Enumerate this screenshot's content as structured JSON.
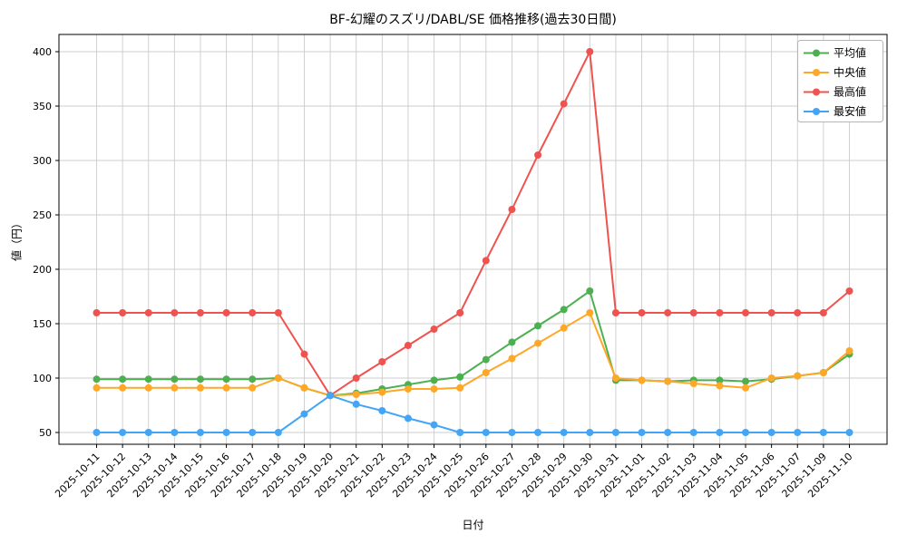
{
  "chart_data": {
    "type": "line",
    "title": "BF-幻耀のスズリ/DABL/SE 価格推移(過去30日間)",
    "xlabel": "日付",
    "ylabel": "値（円）",
    "ylim": [
      30,
      420
    ],
    "yticks": [
      50,
      100,
      150,
      200,
      250,
      300,
      350,
      400
    ],
    "grid": true,
    "legend_position": "upper right",
    "categories": [
      "2025-10-11",
      "2025-10-12",
      "2025-10-13",
      "2025-10-14",
      "2025-10-15",
      "2025-10-16",
      "2025-10-17",
      "2025-10-18",
      "2025-10-19",
      "2025-10-20",
      "2025-10-21",
      "2025-10-22",
      "2025-10-23",
      "2025-10-24",
      "2025-10-25",
      "2025-10-26",
      "2025-10-27",
      "2025-10-28",
      "2025-10-29",
      "2025-10-30",
      "2025-10-31",
      "2025-11-01",
      "2025-11-02",
      "2025-11-03",
      "2025-11-04",
      "2025-11-05",
      "2025-11-06",
      "2025-11-07",
      "2025-11-09",
      "2025-11-10"
    ],
    "series": [
      {
        "name": "平均値",
        "id": "average",
        "color": "#4caf50",
        "values": [
          99,
          99,
          99,
          99,
          99,
          99,
          99,
          100,
          91,
          84,
          86,
          90,
          94,
          98,
          101,
          117,
          133,
          148,
          163,
          180,
          98,
          98,
          97,
          98,
          98,
          97,
          99,
          102,
          105,
          122
        ]
      },
      {
        "name": "中央値",
        "id": "median",
        "color": "#ffa726",
        "values": [
          91,
          91,
          91,
          91,
          91,
          91,
          91,
          100,
          91,
          84,
          85,
          87,
          90,
          90,
          91,
          105,
          118,
          132,
          146,
          160,
          100,
          98,
          97,
          95,
          93,
          91,
          100,
          102,
          105,
          125
        ]
      },
      {
        "name": "最高値",
        "id": "max",
        "color": "#ef5350",
        "values": [
          160,
          160,
          160,
          160,
          160,
          160,
          160,
          160,
          122,
          84,
          100,
          115,
          130,
          145,
          160,
          208,
          255,
          305,
          352,
          400,
          160,
          160,
          160,
          160,
          160,
          160,
          160,
          160,
          160,
          180
        ]
      },
      {
        "name": "最安値",
        "id": "min",
        "color": "#42a5f5",
        "values": [
          50,
          50,
          50,
          50,
          50,
          50,
          50,
          50,
          67,
          84,
          76,
          70,
          63,
          57,
          50,
          50,
          50,
          50,
          50,
          50,
          50,
          50,
          50,
          50,
          50,
          50,
          50,
          50,
          50,
          50
        ]
      }
    ]
  }
}
